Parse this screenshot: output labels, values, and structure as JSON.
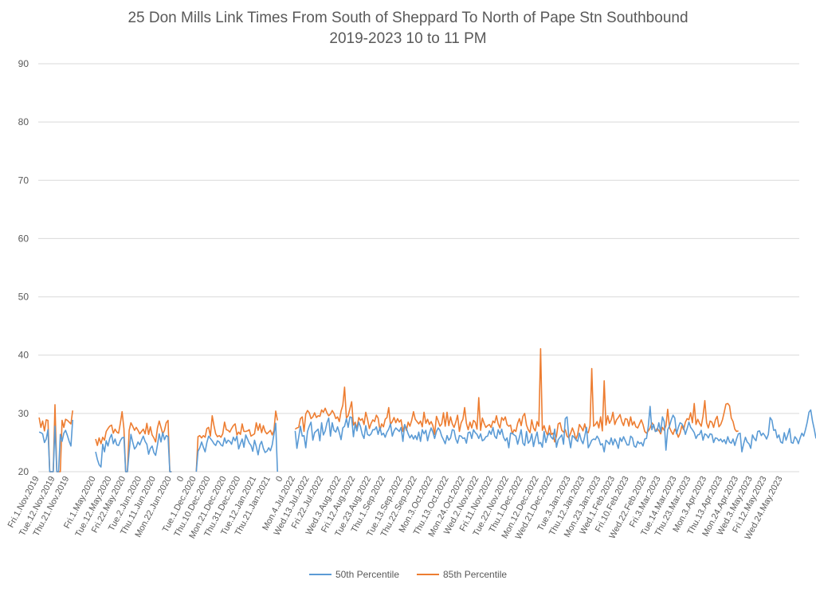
{
  "chart_data": {
    "type": "line",
    "title": "25 Don Mills Link Times From South of Sheppard To North of Pape Stn Southbound",
    "subtitle": "2019-2023 10 to 11 PM",
    "ylim": [
      20,
      90
    ],
    "yticks": [
      "20",
      "30",
      "40",
      "50",
      "60",
      "70",
      "80",
      "90"
    ],
    "grid": true,
    "legend_position": "bottom",
    "x_categories": [
      "Fri.1.Nov.2019",
      "Tue.12.Nov.2019",
      "Thu.21.Nov.2019",
      "Fri.1.May.2020",
      "Tue.12.May.2020",
      "Fri.22.May.2020",
      "Tue.2.Jun.2020",
      "Thu.11.Jun.2020",
      "Mon.22.Jun.2020",
      "0",
      "Tue.1.Dec.2020",
      "Thu.10.Dec.2020",
      "Mon.21.Dec.2020",
      "Thu.31.Dec.2020",
      "Tue.12.Jan.2021",
      "Thu.21.Jan.2021",
      "0",
      "Mon.4.Jul.2022",
      "Wed.13.Jul.2022",
      "Fri.22.Jul.2022",
      "Wed.3.Aug.2022",
      "Fri.12.Aug.2022",
      "Tue.23.Aug.2022",
      "Thu.1.Sep.2022",
      "Tue.13.Sep.2022",
      "Thu.22.Sep.2022",
      "Mon.3.Oct.2022",
      "Thu.13.Oct.2022",
      "Mon.24.Oct.2022",
      "Wed.2.Nov.2022",
      "Fri.11.Nov.2022",
      "Tue.22.Nov.2022",
      "Thu.1.Dec.2022",
      "Mon.12.Dec.2022",
      "Wed.21.Dec.2022",
      "Tue.3.Jan.2023",
      "Thu.12.Jan.2023",
      "Mon.23.Jan.2023",
      "Wed.1.Feb.2023",
      "Fri.10.Feb.2023",
      "Wed.22.Feb.2023",
      "Fri.3.Mar.2023",
      "Tue.14.Mar.2023",
      "Thu.23.Mar.2023",
      "Mon.3.Apr.2023",
      "Thu.13.Apr.2023",
      "Mon.24.Apr.2023",
      "Wed.3.May.2023",
      "Fri.12.May.2023",
      "Wed.24.May.2023"
    ],
    "x_positions": [
      0,
      9,
      17,
      32,
      41,
      49,
      58,
      66,
      75,
      82,
      89,
      97,
      106,
      114,
      123,
      131,
      138,
      145,
      153,
      161,
      171,
      179,
      188,
      196,
      206,
      214,
      223,
      232,
      241,
      249,
      257,
      266,
      274,
      283,
      291,
      301,
      309,
      318,
      326,
      334,
      344,
      352,
      361,
      369,
      378,
      387,
      396,
      404,
      412,
      421
    ],
    "x_count": 431,
    "segments": [
      {
        "start": 0,
        "p50": [
          26.8,
          26.7,
          26.5,
          25.0,
          25.6,
          27.2,
          20,
          20,
          20,
          27.8,
          20,
          20,
          26.4,
          25.2,
          26.6,
          27.1,
          26.2,
          25.2,
          24.4,
          28.9
        ],
        "p85": [
          29.3,
          27.6,
          28.7,
          27.0,
          28.9,
          28.8,
          20,
          20,
          20,
          31.5,
          20,
          20,
          20,
          28.8,
          27.6,
          29.0,
          28.8,
          28.5,
          28.2,
          30.5
        ]
      },
      {
        "start": 32,
        "p50": [
          23.4,
          22.1,
          21.2,
          20.8,
          24.7,
          23.4,
          25.3,
          24.4,
          25.7,
          26.4,
          24.8,
          25.6,
          24.6,
          24.5,
          25.3,
          25.8,
          25.9,
          20,
          20,
          23.5,
          26.4,
          25.1,
          23.9,
          24.3,
          25.1,
          24.6,
          25.4,
          26.1,
          25.2,
          24.7,
          23.0,
          24.0,
          24.4,
          23.3,
          22.8,
          24.6,
          26.5,
          25.1,
          26.7,
          25.5,
          26.2,
          26.0,
          20,
          20
        ],
        "p50_override_note": "",
        "p85": [
          25.6,
          24.5,
          25.8,
          24.8,
          25.9,
          25.4,
          26.9,
          27.4,
          27.8,
          28.0,
          26.6,
          27.3,
          26.8,
          26.6,
          28.3,
          30.3,
          27.4,
          20,
          20,
          27.1,
          28.4,
          27.8,
          27.1,
          27.6,
          27.1,
          26.5,
          26.9,
          27.3,
          26.5,
          28.3,
          26.4,
          27.7,
          26.3,
          25.8,
          25.1,
          27.5,
          28.7,
          27.6,
          26.5,
          27.1,
          28.4,
          28.8,
          20,
          20
        ]
      },
      {
        "start": 89,
        "p50": [
          20,
          23.5,
          24.1,
          25.1,
          24.2,
          23.4,
          25.0,
          26.1,
          25.7,
          25.3,
          24.8,
          24.5,
          25.3,
          25.1,
          24.6,
          24.4,
          25.8,
          24.9,
          25.4,
          25.2,
          24.7,
          25.9,
          25.3,
          26.1,
          23.9,
          24.8,
          25.6,
          24.2,
          26.3,
          25.6,
          24.9,
          24.5,
          23.5,
          25.4,
          24.3,
          22.9,
          24.6,
          25.2,
          24.0,
          23.3,
          23.5,
          24.1,
          23.6,
          24.6,
          26.5,
          28.3,
          20
        ],
        "p85": [
          20,
          26.0,
          26.2,
          25.8,
          26.2,
          25.9,
          27.4,
          27.6,
          26.1,
          29.6,
          27.9,
          26.5,
          26.0,
          26.2,
          25.9,
          26.5,
          28.5,
          27.2,
          27.1,
          26.8,
          27.4,
          27.9,
          28.2,
          26.3,
          26.8,
          26.4,
          28.2,
          26.9,
          26.9,
          27.0,
          27.2,
          26.1,
          26.3,
          26.5,
          28.4,
          27.1,
          28.2,
          26.7,
          27.9,
          26.9,
          26.5,
          26.8,
          27.1,
          26.3,
          27.1,
          30.4,
          28.8
        ]
      },
      {
        "start": 145,
        "p50": [
          27.0,
          24.0,
          25.9,
          27.8,
          26.1,
          26.2,
          24.1,
          26.9,
          27.8,
          28.5,
          25.4,
          26.7,
          27.0,
          27.3,
          25.3,
          28.4,
          26.3,
          27.0,
          28.4,
          29.2,
          26.1,
          28.4,
          27.1,
          26.8,
          27.7,
          26.7,
          25.5,
          27.5,
          27.8,
          29.1,
          27.6,
          29.4,
          29.3,
          26.0,
          28.2,
          27.0,
          28.5,
          27.7,
          26.4,
          25.7,
          27.9,
          26.4,
          26.2,
          26.5,
          27.2,
          27.2,
          27.7,
          26.4,
          27.6,
          26.3,
          26.6,
          25.9,
          26.8,
          27.3,
          28.2,
          26.1,
          27.0,
          27.5,
          27.2,
          26.9,
          27.6,
          25.2,
          28.1,
          27.4,
          26.5,
          25.8,
          26.3,
          25.6,
          26.2,
          25.5,
          26.8,
          25.2,
          27.2,
          26.5,
          27.1,
          25.3,
          26.6,
          27.5,
          26.8,
          25.7,
          26.9,
          27.5,
          27.1,
          26.1,
          25.5,
          24.8,
          26.2,
          25.4,
          25.8,
          27.2,
          27.1,
          25.6,
          24.9,
          26.2,
          26.1,
          25.7,
          25.8,
          24.9,
          26.7,
          26.8,
          25.7,
          27.2,
          26.7,
          26.4,
          25.7,
          26.5,
          25.3,
          25.5,
          26.0,
          26.1,
          27.0,
          26.4,
          27.6,
          26.1,
          25.7,
          27.2,
          26.4,
          27.3,
          25.9,
          25.3,
          25.8,
          24.1,
          26.6,
          26.6,
          26.3,
          26.1,
          24.7,
          25.9,
          27.2,
          24.9,
          24.5,
          26.9,
          24.9,
          25.3,
          26.5,
          24.3,
          25.7,
          26.8,
          24.8,
          25.0,
          24.2,
          26.9,
          25.0,
          26.2,
          26.6,
          25.9,
          25.6,
          27.3,
          24.2,
          25.5,
          25.9,
          26.3,
          24.7,
          29.1,
          29.4,
          25.9,
          24.1,
          26.2,
          25.9,
          25.5,
          25.2,
          26.6,
          25.4,
          24.8,
          26.1,
          27.6,
          24.1,
          24.7,
          25.4,
          25.6,
          25.5,
          26.1,
          25.6,
          24.6,
          24.8,
          23.4,
          25.4,
          25.1,
          24.7,
          25.8,
          24.6,
          25.6,
          25.0,
          24.0,
          25.8,
          25.2,
          26.0,
          25.3,
          24.6,
          24.6,
          26.1,
          25.8,
          24.4,
          24.2,
          25.2,
          24.8,
          25.0,
          24.4,
          25.6,
          25.7,
          27.8,
          31.2,
          27.2,
          28.1,
          26.9,
          27.0,
          28.4,
          26.8,
          29.4,
          28.6,
          23.7,
          27.2,
          27.8,
          28.9,
          29.7,
          29.2,
          26.5,
          27.6,
          28.4,
          28.2,
          27.6,
          26.4,
          27.4,
          28.5,
          27.6,
          27.2,
          26.7,
          25.7,
          26.3,
          26.4,
          27.1,
          25.4,
          26.5,
          26.3,
          25.8,
          26.5,
          26.4,
          25.0,
          25.8,
          25.7,
          25.3,
          25.6,
          25.1,
          25.5,
          24.8,
          26.0,
          25.1,
          24.9,
          25.6,
          24.5,
          25.6,
          26.5,
          26.6,
          23.4,
          24.8,
          25.9,
          25.1,
          24.8,
          24.0,
          26.3,
          25.7,
          25.3,
          26.9,
          27.0,
          26.2,
          26.6,
          26.2,
          25.6,
          26.4,
          29.3,
          28.8,
          27.1,
          27.2,
          25.8,
          26.3,
          25.1,
          24.9,
          26.7,
          25.4,
          26.3,
          27.4,
          25.0,
          24.9,
          26.0,
          25.6,
          24.8,
          25.8,
          26.6,
          26.1,
          27.2,
          28.5,
          30.2,
          30.6,
          28.7,
          27.3,
          25.7
        ],
        "p85": [
          27.3,
          27.5,
          27.6,
          29.1,
          29.4,
          26.9,
          29.9,
          30.5,
          30.1,
          29.1,
          29.4,
          30.1,
          29.3,
          29.6,
          29.5,
          30.6,
          30.2,
          30.9,
          30.1,
          29.6,
          29.9,
          30.5,
          30.0,
          29.1,
          29.4,
          28.6,
          30.4,
          31.4,
          34.5,
          29.2,
          29.6,
          30.8,
          32.0,
          28.0,
          28.5,
          27.4,
          29.3,
          28.8,
          29.1,
          28.1,
          30.2,
          29.0,
          27.4,
          28.3,
          28.9,
          28.6,
          29.7,
          29.2,
          27.1,
          28.2,
          27.7,
          29.0,
          29.3,
          31.0,
          28.1,
          28.6,
          29.3,
          28.4,
          29.1,
          28.5,
          28.9,
          26.9,
          28.0,
          27.1,
          28.5,
          27.8,
          28.8,
          30.3,
          29.0,
          28.6,
          28.2,
          28.7,
          27.7,
          30.2,
          28.3,
          29.0,
          28.1,
          28.6,
          27.9,
          26.4,
          29.5,
          28.7,
          27.8,
          28.2,
          30.1,
          27.8,
          30.2,
          27.9,
          29.4,
          28.2,
          27.6,
          28.5,
          29.7,
          26.9,
          28.4,
          29.0,
          31.0,
          28.3,
          27.2,
          28.5,
          27.5,
          28.8,
          28.5,
          27.3,
          32.7,
          27.1,
          29.2,
          28.3,
          27.6,
          27.9,
          28.1,
          27.6,
          28.7,
          28.4,
          29.6,
          28.2,
          27.5,
          29.3,
          28.8,
          29.4,
          28.1,
          27.8,
          28.0,
          26.5,
          27.2,
          26.9,
          28.3,
          29.1,
          27.9,
          29.5,
          30.0,
          28.0,
          27.2,
          26.7,
          28.9,
          27.5,
          27.0,
          28.6,
          27.8,
          41.1,
          27.1,
          27.9,
          26.9,
          26.2,
          27.9,
          26.4,
          26.6,
          25.1,
          26.1,
          28.2,
          28.4,
          27.1,
          26.8,
          27.2,
          26.1,
          25.8,
          26.6,
          27.5,
          26.7,
          25.5,
          26.4,
          28.1,
          27.6,
          27.0,
          28.2,
          26.9,
          26.7,
          27.9,
          37.7,
          27.8,
          28.1,
          28.6,
          27.5,
          29.4,
          27.0,
          35.6,
          28.0,
          29.6,
          28.3,
          28.9,
          30.2,
          28.1,
          28.9,
          29.3,
          29.8,
          28.6,
          27.9,
          29.1,
          29.0,
          27.8,
          29.4,
          28.0,
          28.6,
          27.7,
          27.5,
          28.2,
          28.9,
          28.1,
          26.9,
          26.6,
          27.0,
          27.5,
          28.4,
          28.0,
          26.9,
          27.4,
          27.1,
          26.5,
          27.6,
          27.1,
          27.9,
          30.7,
          27.6,
          26.9,
          26.4,
          27.3,
          26.8,
          25.9,
          26.6,
          27.9,
          27.2,
          28.5,
          29.1,
          28.9,
          30.1,
          28.4,
          31.7,
          28.1,
          29.0,
          28.3,
          27.8,
          29.5,
          32.2,
          28.4,
          27.5,
          28.7,
          28.5,
          27.6,
          28.9,
          29.5,
          27.7,
          28.1,
          28.9,
          30.2,
          31.6,
          31.7,
          31.3,
          29.2,
          28.6,
          27.3,
          26.9,
          27.0
        ]
      }
    ],
    "series": [
      {
        "name": "50th Percentile",
        "color": "#5b9bd5"
      },
      {
        "name": "85th Percentile",
        "color": "#ed7d31"
      }
    ]
  }
}
